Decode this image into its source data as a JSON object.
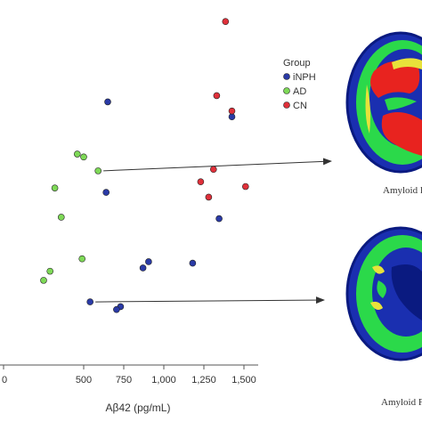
{
  "chart_data": {
    "type": "scatter",
    "xlabel": "Aβ42 (pg/mL)",
    "ylabel": "",
    "xlim": [
      -20,
      1600
    ],
    "ylim": [
      0,
      100
    ],
    "x_ticks": [
      0,
      500,
      750,
      1000,
      1250,
      1500
    ],
    "x_tick_labels": [
      "0",
      "500",
      "750",
      "1,000",
      "1,250",
      "1,500"
    ],
    "grid": false,
    "legend": {
      "title": "Group",
      "placement": "top-right",
      "entries": [
        {
          "label": "iNPH",
          "color": "#2a3aa6"
        },
        {
          "label": "AD",
          "color": "#7ed957"
        },
        {
          "label": "CN",
          "color": "#e0303a"
        }
      ]
    },
    "series": [
      {
        "name": "iNPH",
        "color": "#2a3aa6",
        "points": [
          {
            "x": 650,
            "y": 72.1
          },
          {
            "x": 1425,
            "y": 68.0
          },
          {
            "x": 640,
            "y": 47.3
          },
          {
            "x": 1345,
            "y": 40.1
          },
          {
            "x": 905,
            "y": 28.3
          },
          {
            "x": 870,
            "y": 26.6
          },
          {
            "x": 1180,
            "y": 27.9
          },
          {
            "x": 540,
            "y": 17.3
          },
          {
            "x": 730,
            "y": 16.0
          },
          {
            "x": 705,
            "y": 15.2
          }
        ]
      },
      {
        "name": "AD",
        "color": "#7ed957",
        "points": [
          {
            "x": 460,
            "y": 57.8
          },
          {
            "x": 500,
            "y": 57.0
          },
          {
            "x": 590,
            "y": 53.2
          },
          {
            "x": 320,
            "y": 48.5
          },
          {
            "x": 360,
            "y": 40.5
          },
          {
            "x": 490,
            "y": 29.1
          },
          {
            "x": 290,
            "y": 25.7
          },
          {
            "x": 250,
            "y": 23.2
          }
        ]
      },
      {
        "name": "CN",
        "color": "#e0303a",
        "points": [
          {
            "x": 1385,
            "y": 94.1
          },
          {
            "x": 1330,
            "y": 73.8
          },
          {
            "x": 1425,
            "y": 69.6
          },
          {
            "x": 1310,
            "y": 53.6
          },
          {
            "x": 1230,
            "y": 50.2
          },
          {
            "x": 1280,
            "y": 46.0
          },
          {
            "x": 1510,
            "y": 48.9
          }
        ]
      }
    ],
    "annotations": [
      {
        "type": "arrow",
        "from": {
          "x": 590,
          "y": 53.2
        },
        "to": "upper-brain-image"
      },
      {
        "type": "arrow",
        "from": {
          "x": 540,
          "y": 17.3
        },
        "to": "lower-brain-image"
      }
    ],
    "brain_images": [
      {
        "caption": "Amyloid F",
        "pattern": "high"
      },
      {
        "caption": "Amyloid F",
        "pattern": "low"
      }
    ],
    "colors": {
      "pet_blue": "#1a2fb0",
      "pet_dark_blue": "#0a1a80",
      "pet_green": "#2bd94a",
      "pet_yellow": "#e8e23a",
      "pet_red": "#e8231f",
      "arrow": "#333333",
      "axis": "#555555"
    }
  }
}
